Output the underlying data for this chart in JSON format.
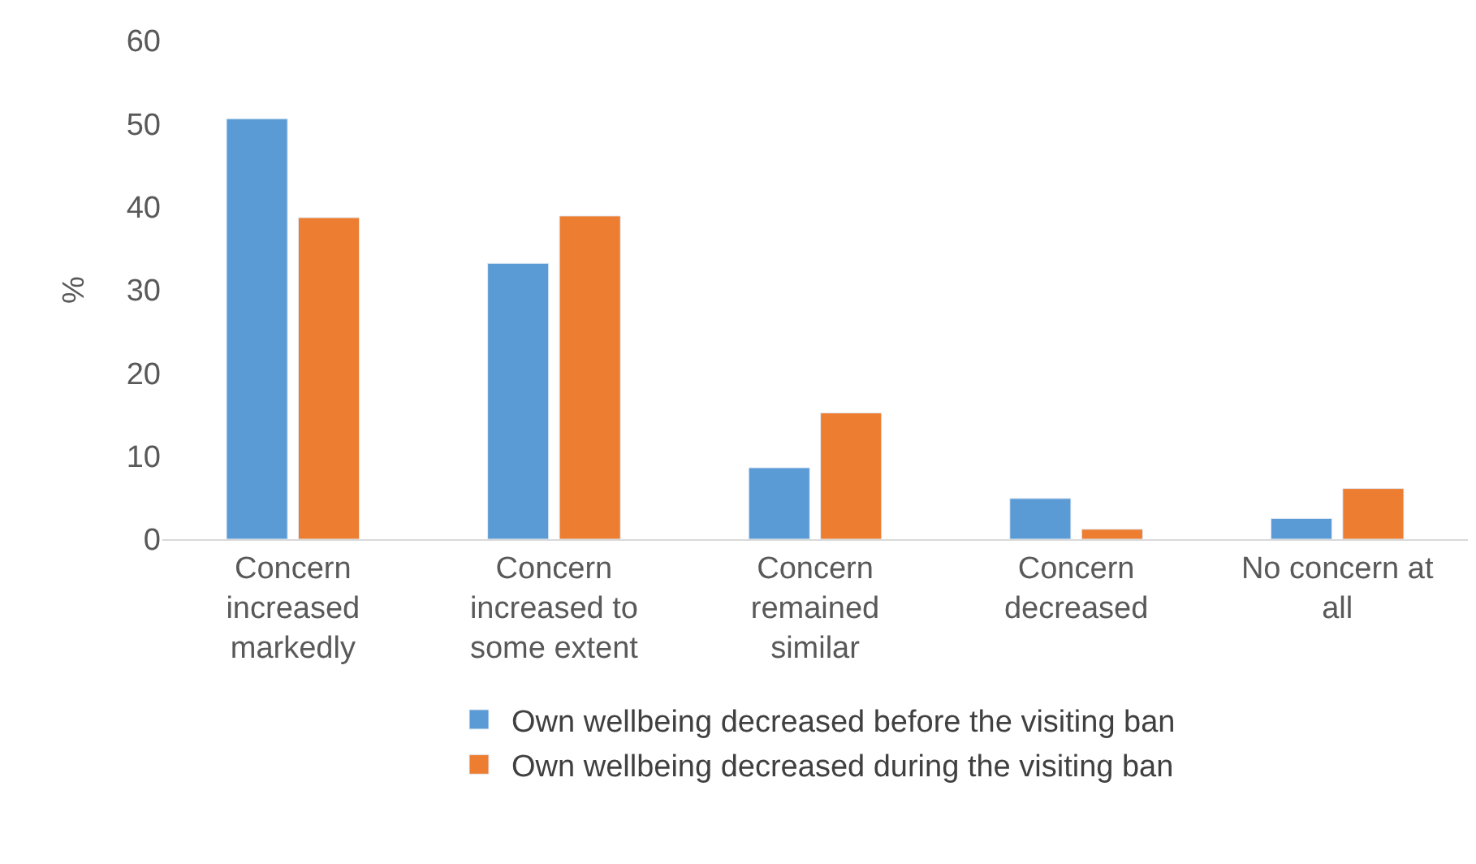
{
  "chart_data": {
    "type": "bar",
    "ylabel": "%",
    "categories": [
      "Concern increased markedly",
      "Concern increased to some extent",
      "Concern remained similar",
      "Concern decreased",
      "No concern at all"
    ],
    "series": [
      {
        "name": "Own wellbeing decreased before the visiting ban",
        "color": "#5b9bd5",
        "values": [
          50.6,
          33.2,
          8.6,
          4.9,
          2.5
        ]
      },
      {
        "name": "Own wellbeing decreased during the visiting ban",
        "color": "#ed7d31",
        "values": [
          38.7,
          38.9,
          15.2,
          1.2,
          6.1
        ]
      }
    ],
    "ylim": [
      0,
      60
    ],
    "yticks": [
      0,
      10,
      20,
      30,
      40,
      50,
      60
    ],
    "grid": false,
    "legend": "bottom"
  }
}
